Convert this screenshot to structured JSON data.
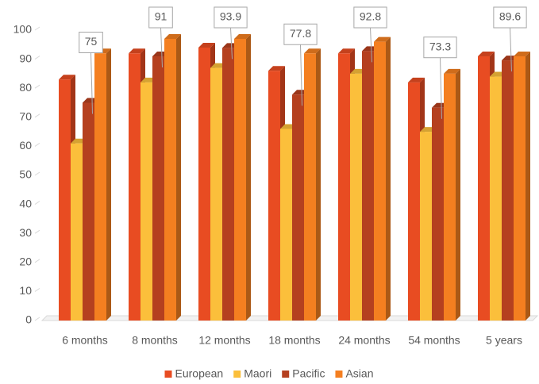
{
  "chart_data": {
    "type": "bar3d",
    "categories": [
      "6 months",
      "8 months",
      "12 months",
      "18 months",
      "24 months",
      "54 months",
      "5 years"
    ],
    "series": [
      {
        "name": "European",
        "color": "#e84c22",
        "values": [
          83,
          92,
          94,
          86,
          92,
          82,
          91
        ]
      },
      {
        "name": "Maori",
        "color": "#fbbf3b",
        "values": [
          61,
          82,
          87,
          66,
          85,
          65,
          84
        ]
      },
      {
        "name": "Pacific",
        "color": "#b5401f",
        "values": [
          75,
          91,
          93.9,
          77.8,
          92.8,
          73.3,
          89.6
        ],
        "data_labels": true
      },
      {
        "name": "Asian",
        "color": "#f47f20",
        "values": [
          92,
          97,
          97,
          92,
          96,
          85,
          91
        ]
      }
    ],
    "ylim": [
      0,
      100
    ],
    "yticks": [
      0,
      10,
      20,
      30,
      40,
      50,
      60,
      70,
      80,
      90,
      100
    ],
    "grid": false,
    "legend": "bottom"
  }
}
